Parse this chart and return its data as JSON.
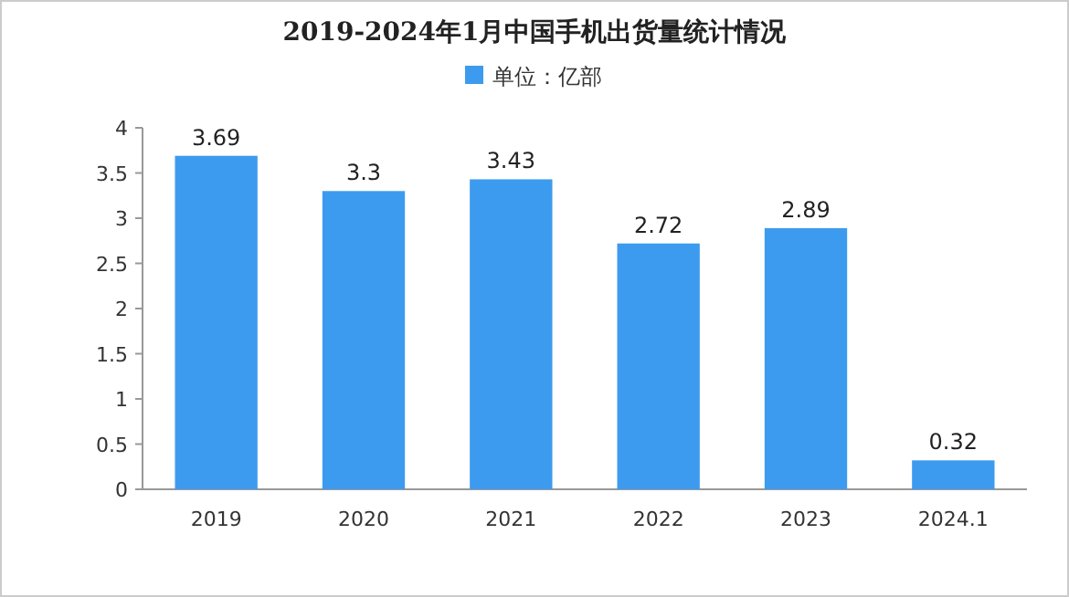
{
  "chart_data": {
    "type": "bar",
    "title": "2019-2024年1月中国手机出货量统计情况",
    "categories": [
      "2019",
      "2020",
      "2021",
      "2022",
      "2023",
      "2024.1"
    ],
    "series": [
      {
        "name": "单位：亿部",
        "color": "#3d9bef",
        "values": [
          3.69,
          3.3,
          3.43,
          2.72,
          2.89,
          0.32
        ]
      }
    ],
    "ylim": [
      0,
      4
    ],
    "yticks": [
      0,
      0.5,
      1,
      1.5,
      2,
      2.5,
      3,
      3.5,
      4
    ],
    "data_labels": true,
    "legend": "top"
  }
}
